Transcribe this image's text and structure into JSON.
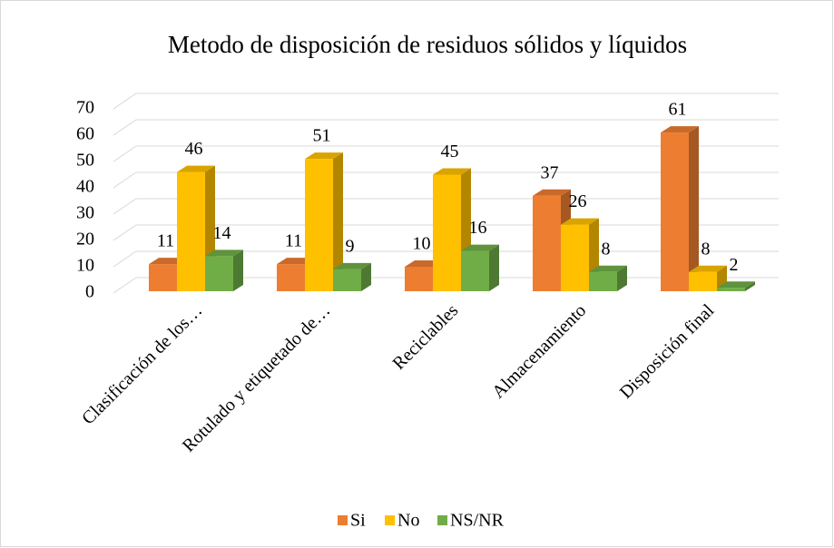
{
  "chart_data": {
    "type": "bar3d",
    "title": "Metodo de  disposición de residuos sólidos y líquidos",
    "categories": [
      "Clasificación de los…",
      "Rotulado y etiquetado de…",
      "Reciclables",
      "Almacenamiento",
      "Disposición final"
    ],
    "series": [
      {
        "name": "Si",
        "color": "#ed7d31",
        "values": [
          11,
          11,
          10,
          37,
          61
        ]
      },
      {
        "name": "No",
        "color": "#ffc000",
        "values": [
          46,
          51,
          45,
          26,
          8
        ]
      },
      {
        "name": "NS/NR",
        "color": "#70ad47",
        "values": [
          14,
          9,
          16,
          8,
          2
        ]
      }
    ],
    "ylim": [
      0,
      70
    ],
    "yticks": [
      0,
      10,
      20,
      30,
      40,
      50,
      60,
      70
    ],
    "grid": true,
    "legend": "bottom"
  }
}
